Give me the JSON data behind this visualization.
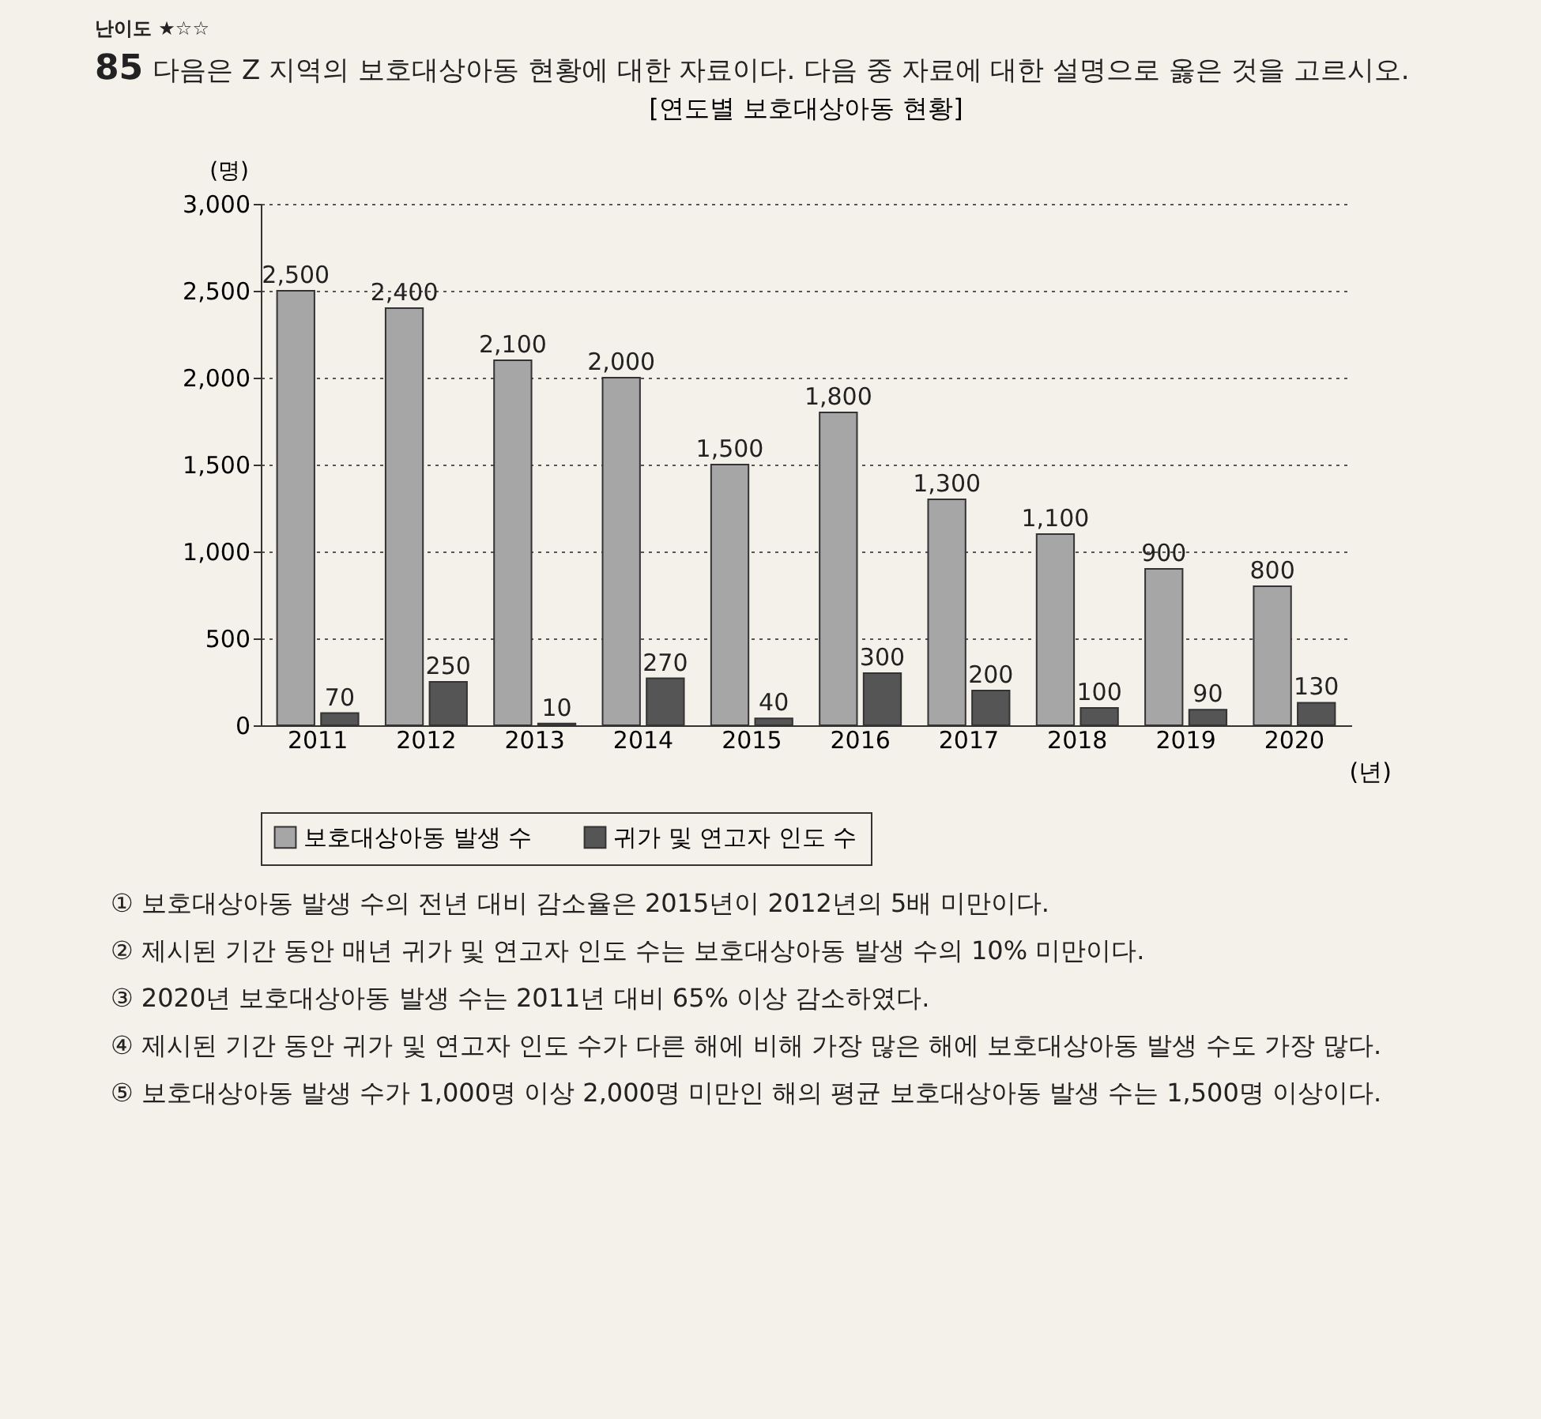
{
  "chart_data": {
    "type": "bar",
    "title": "[연도별 보호대상아동 현황]",
    "xlabel": "(년)",
    "ylabel": "(명)",
    "categories": [
      "2011",
      "2012",
      "2013",
      "2014",
      "2015",
      "2016",
      "2017",
      "2018",
      "2019",
      "2020"
    ],
    "series": [
      {
        "name": "보호대상아동 발생 수",
        "color": "#a6a6a6",
        "values": [
          2500,
          2400,
          2100,
          2000,
          1500,
          1800,
          1300,
          1100,
          900,
          800
        ],
        "value_labels": [
          "2,500",
          "2,400",
          "2,100",
          "2,000",
          "1,500",
          "1,800",
          "1,300",
          "1,100",
          "900",
          "800"
        ]
      },
      {
        "name": "귀가 및 연고자 인도 수",
        "color": "#555555",
        "values": [
          70,
          250,
          10,
          270,
          40,
          300,
          200,
          100,
          90,
          130
        ],
        "value_labels": [
          "70",
          "250",
          "10",
          "270",
          "40",
          "300",
          "200",
          "100",
          "90",
          "130"
        ]
      }
    ],
    "ylim": [
      0,
      3000
    ],
    "yticks": [
      0,
      {
        "value": 500,
        "label": "500"
      },
      {
        "value": 1000,
        "label": "1,000"
      },
      {
        "value": 1500,
        "label": "1,500"
      },
      {
        "value": 2000,
        "label": "2,000"
      },
      {
        "value": 2500,
        "label": "2,500"
      },
      {
        "value": 3000,
        "label": "3,000"
      }
    ],
    "grid": "y",
    "legend": "bottom",
    "annotations": [
      "난이도 ★☆☆",
      "85",
      "다음은 Z 지역의 보호대상아동 현황에 대한 자료이다. 다음 중 자료에 대한 설명으로 옳은 것을 고르시오.",
      "① 보호대상아동 발생 수의 전년 대비 감소율은 2015년이 2012년의 5배 미만이다.",
      "② 제시된 기간 동안 매년 귀가 및 연고자 인도 수는 보호대상아동 발생 수의 10% 미만이다.",
      "③ 2020년 보호대상아동 발생 수는 2011년 대비 65% 이상 감소하였다.",
      "④ 제시된 기간 동안 귀가 및 연고자 인도 수가 다른 해에 비해 가장 많은 해에 보호대상아동 발생 수도 가장 많다.",
      "⑤ 보호대상아동 발생 수가 1,000명 이상 2,000명 미만인 해의 평균 보호대상아동 발생 수는 1,500명 이상이다."
    ]
  }
}
